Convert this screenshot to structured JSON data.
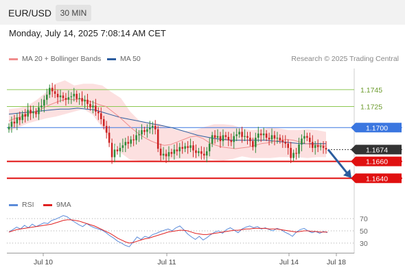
{
  "header": {
    "pair": "EUR/USD",
    "timeframe": "30 MIN"
  },
  "datetime": "Monday, July 14, 2025 7:08:14 AM CET",
  "legend": {
    "ma20": {
      "label": "MA 20 + Bollinger Bands",
      "color": "#f08c8c"
    },
    "ma50": {
      "label": "MA 50",
      "color": "#2b5c9e"
    },
    "copyright": "Research © 2025 Trading Central"
  },
  "rsi_legend": {
    "rsi": {
      "label": "RSI",
      "color": "#5b8bd9"
    },
    "ma9": {
      "label": "9MA",
      "color": "#e02020"
    }
  },
  "chart_data": [
    {
      "type": "candlestick",
      "ylim": [
        1.1624,
        1.177
      ],
      "x_ticks": [
        "Jul 10",
        "Jul 11",
        "Jul 14",
        "Jul 18"
      ],
      "levels": [
        {
          "value": 1.1745,
          "label": "1.1745",
          "kind": "resistance",
          "color": "#8cc850"
        },
        {
          "value": 1.1725,
          "label": "1.1725",
          "kind": "resistance",
          "color": "#8cc850"
        },
        {
          "value": 1.17,
          "label": "1.1700",
          "kind": "pivot",
          "color": "#3a76e0"
        },
        {
          "value": 1.1674,
          "label": "1.1674",
          "kind": "last",
          "color": "#333333"
        },
        {
          "value": 1.166,
          "label": "1.1660",
          "kind": "support",
          "color": "#e01010"
        },
        {
          "value": 1.164,
          "label": "1.1640",
          "kind": "support",
          "color": "#e01010"
        }
      ],
      "close": [
        1.1701,
        1.1707,
        1.1705,
        1.1712,
        1.1709,
        1.1716,
        1.1713,
        1.1721,
        1.1717,
        1.1719,
        1.1716,
        1.1724,
        1.1726,
        1.1733,
        1.1739,
        1.1747,
        1.1743,
        1.174,
        1.1736,
        1.1738,
        1.1735,
        1.1733,
        1.1736,
        1.1737,
        1.174,
        1.1734,
        1.1735,
        1.1731,
        1.1733,
        1.1728,
        1.1724,
        1.1726,
        1.1719,
        1.1717,
        1.171,
        1.1702,
        1.1694,
        1.1682,
        1.1665,
        1.1674,
        1.1672,
        1.1676,
        1.1679,
        1.1683,
        1.1681,
        1.1686,
        1.1685,
        1.1691,
        1.1692,
        1.1697,
        1.1695,
        1.1698,
        1.17,
        1.1702,
        1.1698,
        1.1675,
        1.1667,
        1.1669,
        1.1666,
        1.1671,
        1.1669,
        1.1674,
        1.1672,
        1.1677,
        1.1675,
        1.1678,
        1.1676,
        1.1679,
        1.1673,
        1.167,
        1.1672,
        1.1669,
        1.1667,
        1.1672,
        1.1681,
        1.1691,
        1.1688,
        1.169,
        1.1684,
        1.1691,
        1.1689,
        1.1685,
        1.1683,
        1.169,
        1.1692,
        1.1695,
        1.1689,
        1.169,
        1.1688,
        1.1684,
        1.1677,
        1.1688,
        1.1693,
        1.1691,
        1.1693,
        1.1688,
        1.1686,
        1.1691,
        1.1687,
        1.1688,
        1.1685,
        1.1683,
        1.1681,
        1.1676,
        1.1664,
        1.167,
        1.1669,
        1.168,
        1.1687,
        1.169,
        1.1688,
        1.1683,
        1.1676,
        1.1679,
        1.1677,
        1.1678,
        1.1676,
        1.1674
      ],
      "ma20": [
        1.1708,
        1.1711,
        1.1713,
        1.1716,
        1.1719,
        1.1722,
        1.1726,
        1.1729,
        1.1732,
        1.1734,
        1.1733,
        1.1734,
        1.1732,
        1.173,
        1.1727,
        1.1725,
        1.1719,
        1.1713,
        1.1706,
        1.1699,
        1.1693,
        1.1688,
        1.1684,
        1.1681,
        1.1679,
        1.168,
        1.1683,
        1.1686,
        1.1689,
        1.169,
        1.1687,
        1.1682,
        1.1679,
        1.1677,
        1.1676,
        1.1675,
        1.1676,
        1.1677,
        1.1679,
        1.1681,
        1.1682,
        1.1684,
        1.1685,
        1.1686,
        1.1685,
        1.1683,
        1.1681,
        1.168,
        1.1679,
        1.1678
      ],
      "ma50": [
        1.1716,
        1.1717,
        1.1718,
        1.1719,
        1.172,
        1.1721,
        1.1722,
        1.1722,
        1.1723,
        1.1722,
        1.1721,
        1.1718,
        1.1715,
        1.1712,
        1.171,
        1.1708,
        1.1706,
        1.1704,
        1.1702,
        1.17,
        1.1697,
        1.1694,
        1.1691,
        1.1689,
        1.1687,
        1.1686,
        1.1685,
        1.1685,
        1.1685,
        1.1685,
        1.1685,
        1.1684,
        1.1683,
        1.1682,
        1.1681,
        1.1681,
        1.1681,
        1.1681
      ],
      "bb_upper": [
        1.1722,
        1.1723,
        1.1726,
        1.1733,
        1.1742,
        1.1752,
        1.1756,
        1.175,
        1.1752,
        1.1752,
        1.175,
        1.1742,
        1.1735,
        1.1719,
        1.1708,
        1.1705,
        1.1705,
        1.1701,
        1.1697,
        1.1696,
        1.1697,
        1.1701,
        1.1704,
        1.1704,
        1.1703,
        1.1699,
        1.1697,
        1.1698,
        1.17,
        1.1699,
        1.1697,
        1.1697,
        1.1698,
        1.1697,
        1.1695
      ],
      "bb_lower": [
        1.1696,
        1.17,
        1.1705,
        1.1708,
        1.1711,
        1.1713,
        1.1716,
        1.1719,
        1.1722,
        1.1715,
        1.17,
        1.1685,
        1.167,
        1.1662,
        1.1661,
        1.166,
        1.1661,
        1.1662,
        1.1663,
        1.1663,
        1.1663,
        1.1664,
        1.1662,
        1.1661,
        1.1663,
        1.1666,
        1.1664,
        1.1664,
        1.1664,
        1.1665,
        1.1665,
        1.1665,
        1.1664,
        1.1665,
        1.1665
      ]
    },
    {
      "type": "line",
      "name": "RSI",
      "ylim": [
        22,
        78
      ],
      "y_ticks": [
        70,
        50,
        30
      ],
      "rsi": [
        48,
        52,
        56,
        53,
        59,
        55,
        61,
        57,
        60,
        63,
        62,
        67,
        69,
        72,
        75,
        73,
        68,
        64,
        60,
        57,
        62,
        58,
        55,
        53,
        51,
        47,
        42,
        38,
        33,
        30,
        26,
        24,
        32,
        40,
        36,
        41,
        39,
        44,
        46,
        49,
        51,
        53,
        50,
        55,
        58,
        52,
        45,
        40,
        36,
        41,
        35,
        39,
        44,
        48,
        50,
        46,
        52,
        55,
        51,
        47,
        53,
        56,
        58,
        55,
        57,
        53,
        55,
        52,
        50,
        54,
        52,
        48,
        45,
        41,
        48,
        52,
        54,
        50,
        47,
        49,
        46,
        49,
        47
      ],
      "ma9": [
        48,
        50,
        52,
        53,
        54,
        55,
        56,
        57,
        58,
        59,
        60,
        61,
        63,
        65,
        67,
        68,
        68,
        67,
        66,
        64,
        62,
        60,
        58,
        55,
        52,
        49,
        46,
        42,
        38,
        35,
        32,
        30,
        31,
        33,
        35,
        37,
        38,
        40,
        42,
        44,
        46,
        48,
        49,
        50,
        51,
        51,
        50,
        48,
        46,
        45,
        44,
        44,
        45,
        46,
        47,
        48,
        49,
        50,
        51,
        51,
        52,
        53,
        53,
        54,
        54,
        54,
        54,
        53,
        53,
        53,
        52,
        51,
        50,
        49,
        48,
        49,
        50,
        50,
        49,
        49,
        48,
        48,
        48
      ]
    }
  ]
}
